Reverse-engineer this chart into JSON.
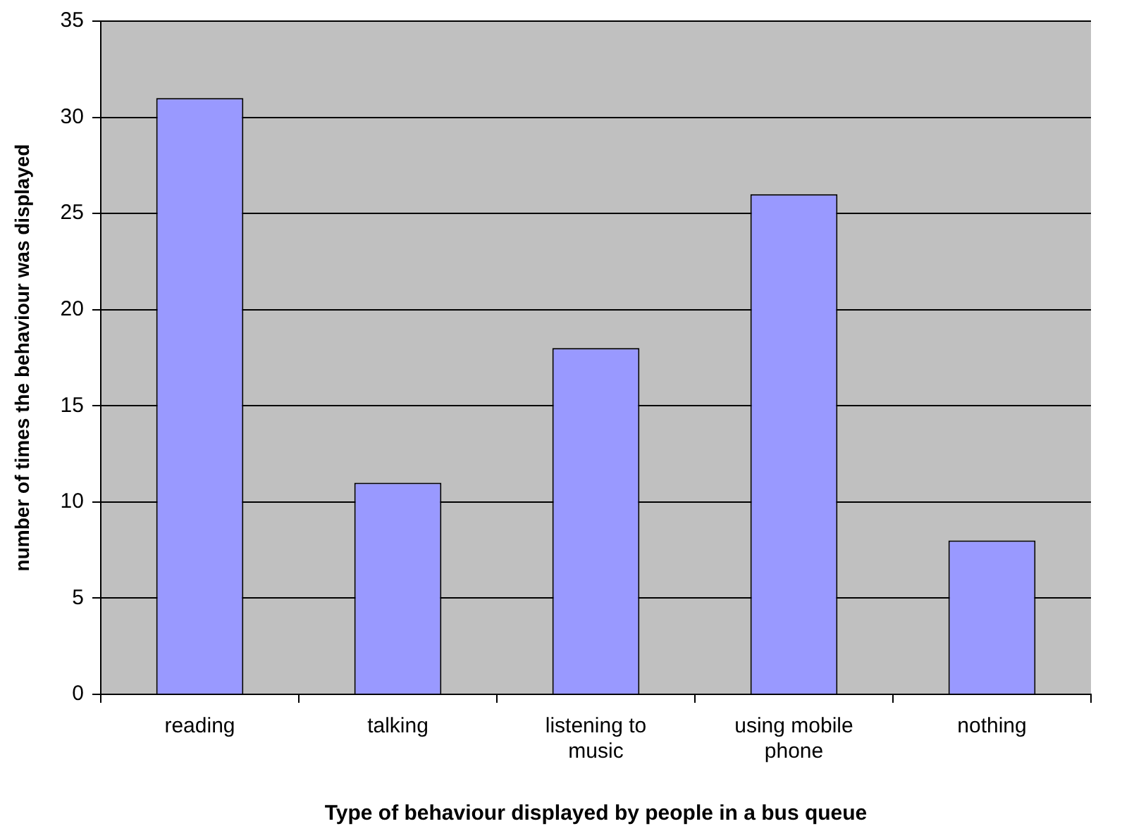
{
  "chart_data": {
    "type": "bar",
    "xlabel": "Type of behaviour displayed by people in a bus queue",
    "ylabel": "number of times the behaviour was displayed",
    "categories": [
      "reading",
      "talking",
      "listening to music",
      "using mobile phone",
      "nothing"
    ],
    "values": [
      31,
      11,
      18,
      26,
      8
    ],
    "color": "#9999ff",
    "ylim": [
      0,
      35
    ],
    "yticks": [
      0,
      5,
      10,
      15,
      20,
      25,
      30,
      35
    ],
    "grid": "y",
    "legend": false
  }
}
